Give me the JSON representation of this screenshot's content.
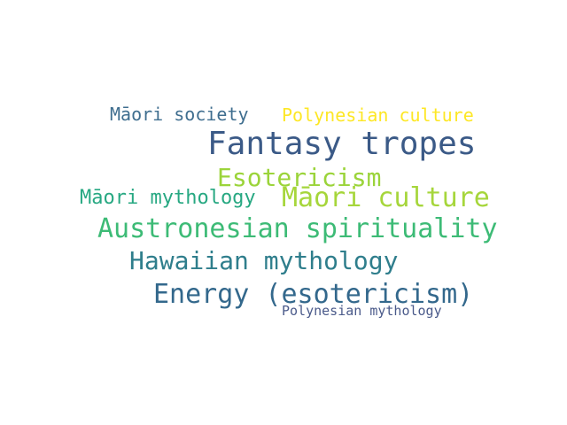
{
  "word_cloud": {
    "words": [
      {
        "text": "Māori society",
        "color": "#3f6e8f"
      },
      {
        "text": "Polynesian culture",
        "color": "#fde725"
      },
      {
        "text": "Fantasy tropes",
        "color": "#3b5a87"
      },
      {
        "text": "Esotericism",
        "color": "#9bd43a"
      },
      {
        "text": "Māori mythology",
        "color": "#27a882"
      },
      {
        "text": "Māori culture",
        "color": "#a6d63b"
      },
      {
        "text": "Austronesian spirituality",
        "color": "#3dbb76"
      },
      {
        "text": "Hawaiian mythology",
        "color": "#2f7e8c"
      },
      {
        "text": "Energy (esotericism)",
        "color": "#33688c"
      },
      {
        "text": "Polynesian mythology",
        "color": "#4a5a8a"
      }
    ]
  }
}
